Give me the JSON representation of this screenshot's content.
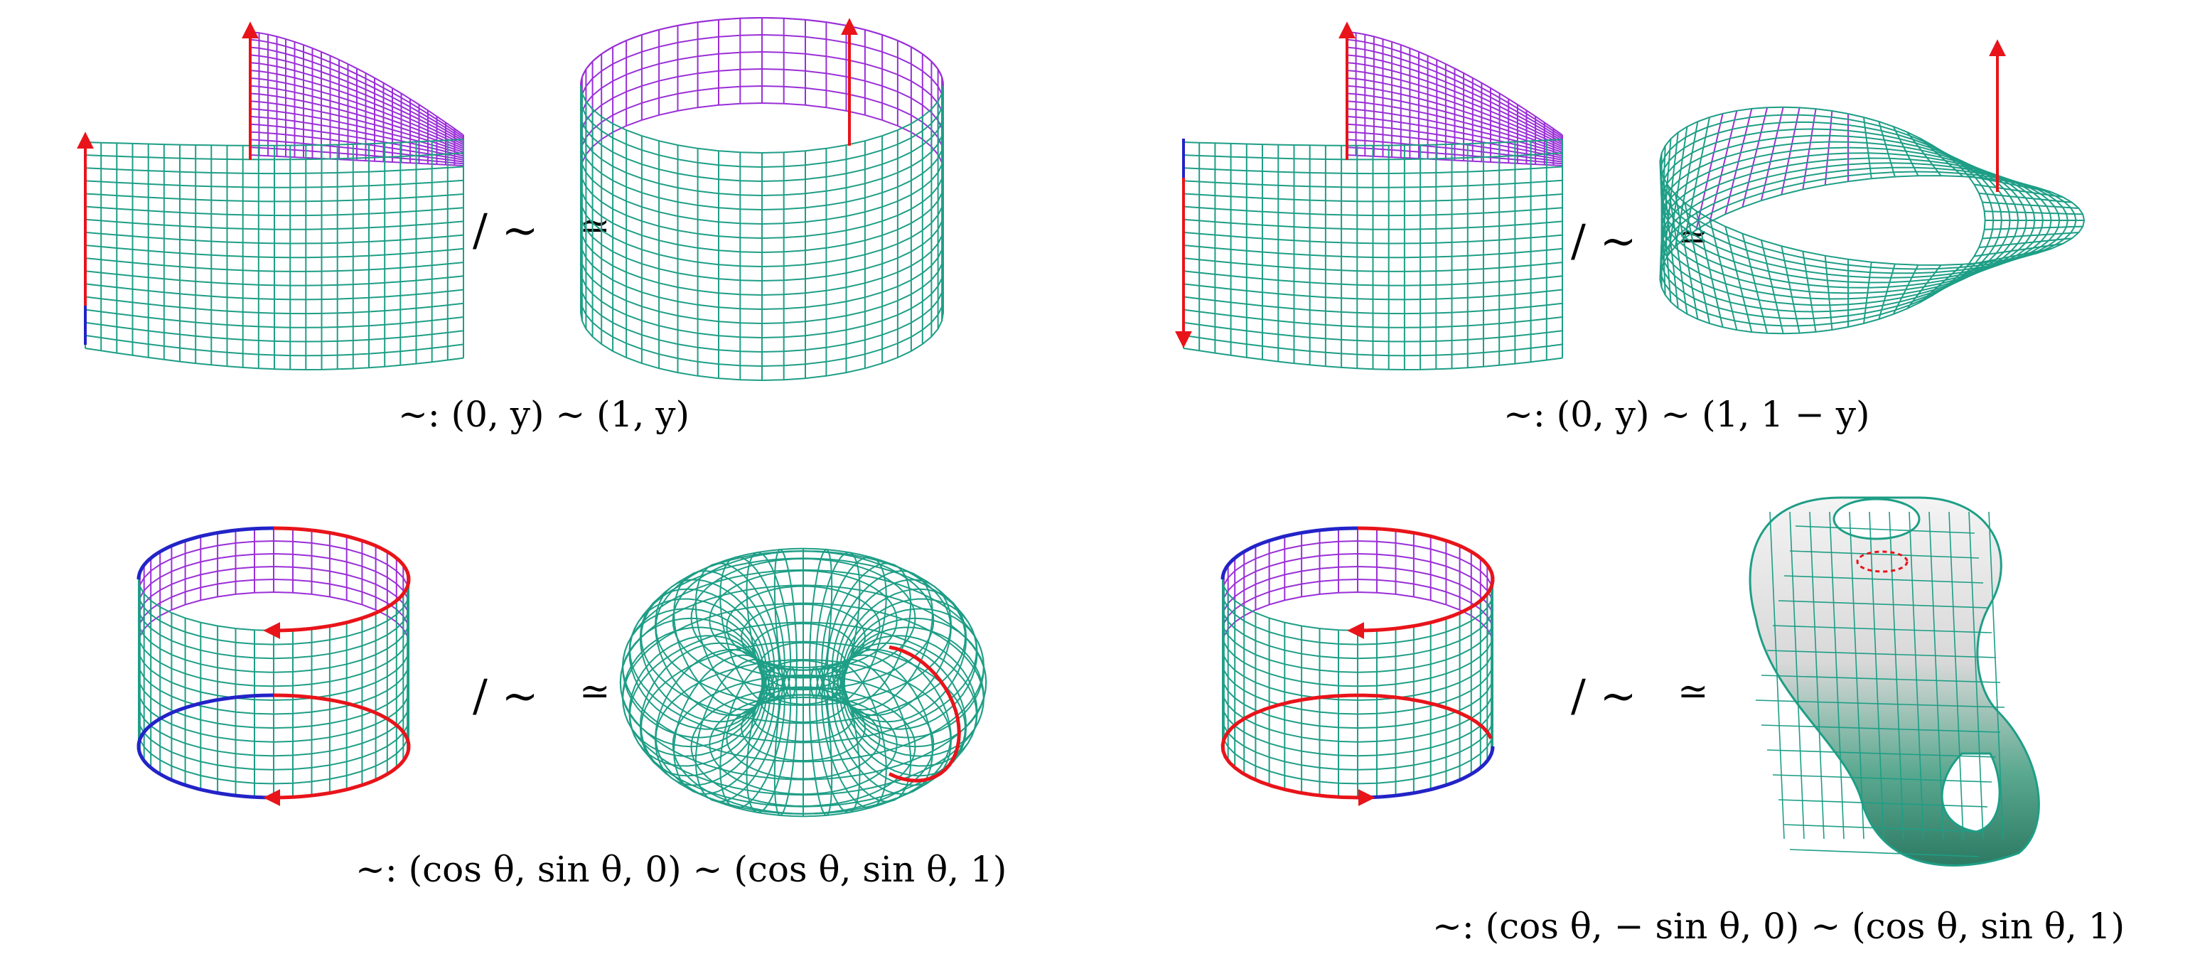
{
  "colors": {
    "grid": "#1e9e86",
    "inner": "#9a2fd8",
    "arrow_red": "#e8141a",
    "arrow_blue": "#2323c8",
    "bottle_fill_light": "#f2f2f2",
    "bottle_fill_dark": "#3a8f78"
  },
  "panels": [
    {
      "id": "cylinder",
      "quotient": "/ ~",
      "homeo": "≃",
      "caption": "~:  (0, y) ~ (1, y)"
    },
    {
      "id": "mobius",
      "quotient": "/ ~",
      "homeo": "≃",
      "caption": "~:  (0, y) ~ (1, 1 − y)"
    },
    {
      "id": "torus",
      "quotient": "/ ~",
      "homeo": "≃",
      "caption": "~:  (cos θ, sin θ, 0) ~ (cos θ, sin θ, 1)"
    },
    {
      "id": "klein",
      "quotient": "/ ~",
      "homeo": "≃",
      "caption": "~:  (cos θ, − sin θ, 0) ~ (cos θ, sin θ, 1)"
    }
  ]
}
